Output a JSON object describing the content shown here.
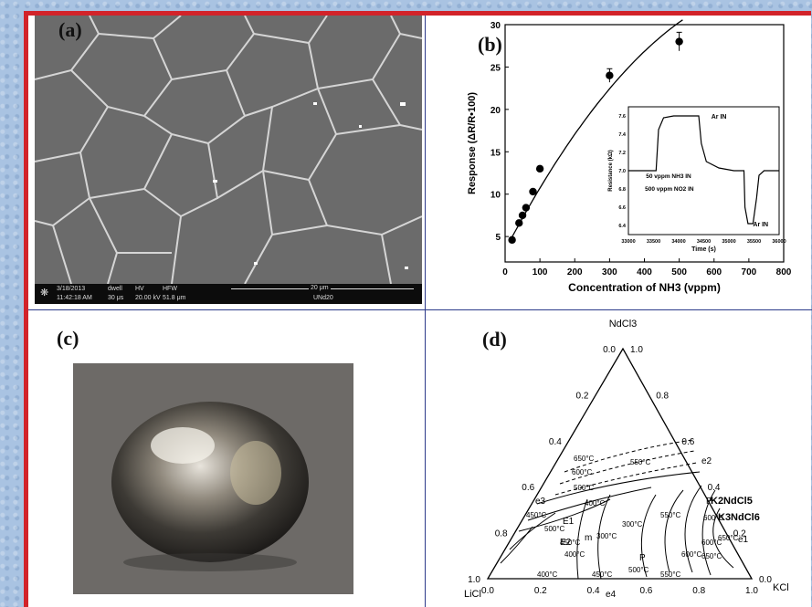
{
  "panels": {
    "a": {
      "label": "(a)"
    },
    "b": {
      "label": "(b)"
    },
    "c": {
      "label": "(c)"
    },
    "d": {
      "label": "(d)"
    }
  },
  "sem_bar": {
    "date": "3/18/2013",
    "time": "11:42:18 AM",
    "dwell_label": "dwell",
    "dwell_value": "30 μs",
    "hv_label": "HV",
    "hv_value": "20.00 kV",
    "hfw_label": "HFW",
    "hfw_value": "51.8 μm",
    "scale": "20 μm",
    "sample": "UNd20"
  },
  "chart_data": [
    {
      "type": "scatter",
      "xlabel": "Concentration of NH3 (vppm)",
      "ylabel": "Response (ΔR/R•100)",
      "xlim": [
        0,
        800
      ],
      "ylim": [
        2,
        30
      ],
      "xticks": [
        0,
        100,
        200,
        300,
        400,
        500,
        600,
        700,
        800
      ],
      "yticks": [
        5,
        10,
        15,
        20,
        25,
        30
      ],
      "x": [
        20,
        40,
        50,
        60,
        80,
        100,
        300,
        500
      ],
      "y": [
        4.6,
        6.6,
        7.5,
        8.4,
        10.3,
        13.0,
        24.0,
        28.0
      ],
      "error": [
        0,
        0,
        0,
        0,
        0,
        0,
        0.8,
        1.1
      ],
      "fit_curve": true
    },
    {
      "type": "line",
      "xlabel": "Time (s)",
      "ylabel": "Resistance (kΩ)",
      "xlim": [
        33000,
        36000
      ],
      "ylim": [
        6.3,
        7.7
      ],
      "xticks": [
        33000,
        33500,
        34000,
        34500,
        35000,
        35500,
        36000
      ],
      "yticks": [
        6.4,
        6.6,
        6.8,
        7.0,
        7.2,
        7.4,
        7.6
      ],
      "x": [
        33000,
        33550,
        33600,
        33700,
        33900,
        34200,
        34400,
        34450,
        34550,
        34800,
        35000,
        35100,
        35300,
        35320,
        35380,
        35480,
        35550,
        35600,
        35700,
        36000
      ],
      "y": [
        7.0,
        7.0,
        7.45,
        7.58,
        7.6,
        7.6,
        7.6,
        7.3,
        7.1,
        7.03,
        7.01,
        7.0,
        7.0,
        6.6,
        6.42,
        6.42,
        6.7,
        6.95,
        7.0,
        7.0
      ],
      "annotations": [
        "Ar IN",
        "50 vppm NH3 IN",
        "500 vppm NO2 IN",
        "Ar IN"
      ]
    },
    {
      "type": "diagram",
      "vertices": {
        "top": "NdCl3",
        "left": "LiCl",
        "right": "KCl"
      },
      "left_scale": [
        "0.0",
        "0.2",
        "0.4",
        "0.6",
        "0.8",
        "1.0"
      ],
      "right_scale": [
        "1.0",
        "0.8",
        "0.6",
        "0.4",
        "0.2",
        "0.0"
      ],
      "bottom_scale": [
        "0.0",
        "0.2",
        "0.4",
        "0.6",
        "0.8",
        "1.0"
      ],
      "isotherms": [
        "650°C",
        "600°C",
        "550°C",
        "500°C",
        "450°C",
        "400°C",
        "300°C",
        "550°C",
        "600°C",
        "500°C",
        "450°C",
        "550°C",
        "600°C",
        "650°C",
        "400°C",
        "300°C",
        "500°C",
        "450°C",
        "400°C",
        "650°C",
        "600°C"
      ],
      "points": [
        "e2",
        "e3",
        "e1",
        "e4",
        "E1",
        "E2",
        "m",
        "P",
        "P"
      ],
      "compounds": [
        "K2NdCl5",
        "K3NdCl6"
      ]
    }
  ]
}
